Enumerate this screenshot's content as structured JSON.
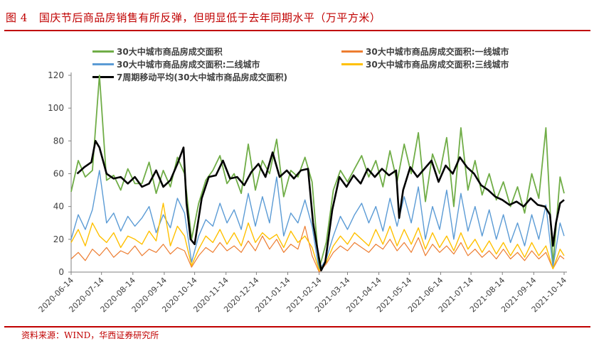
{
  "header": {
    "figure_label": "图 4",
    "title": "国庆节后商品房销售有所反弹，但明显低于去年同期水平（万平方米）"
  },
  "source_text": "资料来源：WIND，华西证券研究所",
  "chart_data": {
    "type": "line",
    "ylim": [
      0,
      120
    ],
    "yticks": [
      0,
      20,
      40,
      60,
      80,
      100,
      120
    ],
    "xlim": [
      "2020-06-14",
      "2021-10-14"
    ],
    "xticks": [
      "2020-06-14",
      "2020-07-14",
      "2020-08-14",
      "2020-09-14",
      "2020-10-14",
      "2020-11-14",
      "2020-12-14",
      "2021-01-14",
      "2021-02-14",
      "2021-03-14",
      "2021-04-14",
      "2021-05-14",
      "2021-06-14",
      "2021-07-14",
      "2021-08-14",
      "2021-09-14",
      "2021-10-14"
    ],
    "grid": false,
    "legend_position": "top",
    "series": [
      {
        "name": "30大中城市商品房成交面积",
        "color": "#70ad47",
        "width": 1.8,
        "x": [
          "2020-06-14",
          "2020-06-21",
          "2020-06-28",
          "2020-07-05",
          "2020-07-12",
          "2020-07-19",
          "2020-07-26",
          "2020-08-02",
          "2020-08-09",
          "2020-08-16",
          "2020-08-23",
          "2020-08-30",
          "2020-09-06",
          "2020-09-13",
          "2020-09-20",
          "2020-09-27",
          "2020-10-04",
          "2020-10-11",
          "2020-10-18",
          "2020-10-25",
          "2020-11-01",
          "2020-11-08",
          "2020-11-15",
          "2020-11-22",
          "2020-11-29",
          "2020-12-06",
          "2020-12-13",
          "2020-12-20",
          "2020-12-27",
          "2021-01-03",
          "2021-01-10",
          "2021-01-17",
          "2021-01-24",
          "2021-01-31",
          "2021-02-07",
          "2021-02-14",
          "2021-02-21",
          "2021-02-28",
          "2021-03-07",
          "2021-03-14",
          "2021-03-21",
          "2021-03-28",
          "2021-04-04",
          "2021-04-11",
          "2021-04-18",
          "2021-04-25",
          "2021-05-02",
          "2021-05-09",
          "2021-05-16",
          "2021-05-23",
          "2021-05-30",
          "2021-06-06",
          "2021-06-13",
          "2021-06-20",
          "2021-06-27",
          "2021-07-04",
          "2021-07-11",
          "2021-07-18",
          "2021-07-25",
          "2021-08-01",
          "2021-08-08",
          "2021-08-15",
          "2021-08-22",
          "2021-08-29",
          "2021-09-05",
          "2021-09-12",
          "2021-09-19",
          "2021-09-26",
          "2021-10-03",
          "2021-10-10",
          "2021-10-14"
        ],
        "values": [
          49,
          68,
          58,
          62,
          120,
          56,
          59,
          50,
          63,
          54,
          54,
          67,
          48,
          62,
          52,
          70,
          60,
          20,
          42,
          56,
          62,
          71,
          54,
          60,
          48,
          78,
          50,
          68,
          60,
          81,
          46,
          62,
          58,
          70,
          55,
          2,
          18,
          50,
          62,
          55,
          63,
          71,
          58,
          68,
          52,
          74,
          55,
          78,
          60,
          85,
          43,
          72,
          60,
          82,
          40,
          88,
          50,
          68,
          47,
          60,
          44,
          55,
          40,
          52,
          36,
          60,
          45,
          88,
          4,
          58,
          48
        ]
      },
      {
        "name": "30大中城市商品房成交面积:一线城市",
        "color": "#ed7d31",
        "width": 1.2,
        "x": [
          "2020-06-14",
          "2020-06-21",
          "2020-06-28",
          "2020-07-05",
          "2020-07-12",
          "2020-07-19",
          "2020-07-26",
          "2020-08-02",
          "2020-08-09",
          "2020-08-16",
          "2020-08-23",
          "2020-08-30",
          "2020-09-06",
          "2020-09-13",
          "2020-09-20",
          "2020-09-27",
          "2020-10-04",
          "2020-10-11",
          "2020-10-18",
          "2020-10-25",
          "2020-11-01",
          "2020-11-08",
          "2020-11-15",
          "2020-11-22",
          "2020-11-29",
          "2020-12-06",
          "2020-12-13",
          "2020-12-20",
          "2020-12-27",
          "2021-01-03",
          "2021-01-10",
          "2021-01-17",
          "2021-01-24",
          "2021-01-31",
          "2021-02-07",
          "2021-02-14",
          "2021-02-21",
          "2021-02-28",
          "2021-03-07",
          "2021-03-14",
          "2021-03-21",
          "2021-03-28",
          "2021-04-04",
          "2021-04-11",
          "2021-04-18",
          "2021-04-25",
          "2021-05-02",
          "2021-05-09",
          "2021-05-16",
          "2021-05-23",
          "2021-05-30",
          "2021-06-06",
          "2021-06-13",
          "2021-06-20",
          "2021-06-27",
          "2021-07-04",
          "2021-07-11",
          "2021-07-18",
          "2021-07-25",
          "2021-08-01",
          "2021-08-08",
          "2021-08-15",
          "2021-08-22",
          "2021-08-29",
          "2021-09-05",
          "2021-09-12",
          "2021-09-19",
          "2021-09-26",
          "2021-10-03",
          "2021-10-10",
          "2021-10-14"
        ],
        "values": [
          8,
          12,
          7,
          14,
          10,
          15,
          9,
          13,
          11,
          16,
          10,
          14,
          12,
          17,
          11,
          15,
          13,
          3,
          10,
          15,
          12,
          18,
          13,
          16,
          12,
          19,
          13,
          22,
          14,
          20,
          12,
          17,
          14,
          28,
          10,
          0,
          5,
          12,
          16,
          13,
          18,
          15,
          12,
          17,
          14,
          20,
          13,
          18,
          12,
          21,
          10,
          17,
          12,
          16,
          11,
          18,
          10,
          14,
          9,
          13,
          8,
          14,
          8,
          12,
          7,
          13,
          8,
          12,
          2,
          10,
          8
        ]
      },
      {
        "name": "30大中城市商品房成交面积:二线城市",
        "color": "#5b9bd5",
        "width": 1.4,
        "x": [
          "2020-06-14",
          "2020-06-21",
          "2020-06-28",
          "2020-07-05",
          "2020-07-12",
          "2020-07-19",
          "2020-07-26",
          "2020-08-02",
          "2020-08-09",
          "2020-08-16",
          "2020-08-23",
          "2020-08-30",
          "2020-09-06",
          "2020-09-13",
          "2020-09-20",
          "2020-09-27",
          "2020-10-04",
          "2020-10-11",
          "2020-10-18",
          "2020-10-25",
          "2020-11-01",
          "2020-11-08",
          "2020-11-15",
          "2020-11-22",
          "2020-11-29",
          "2020-12-06",
          "2020-12-13",
          "2020-12-20",
          "2020-12-27",
          "2021-01-03",
          "2021-01-10",
          "2021-01-17",
          "2021-01-24",
          "2021-01-31",
          "2021-02-07",
          "2021-02-14",
          "2021-02-21",
          "2021-02-28",
          "2021-03-07",
          "2021-03-14",
          "2021-03-21",
          "2021-03-28",
          "2021-04-04",
          "2021-04-11",
          "2021-04-18",
          "2021-04-25",
          "2021-05-02",
          "2021-05-09",
          "2021-05-16",
          "2021-05-23",
          "2021-05-30",
          "2021-06-06",
          "2021-06-13",
          "2021-06-20",
          "2021-06-27",
          "2021-07-04",
          "2021-07-11",
          "2021-07-18",
          "2021-07-25",
          "2021-08-01",
          "2021-08-08",
          "2021-08-15",
          "2021-08-22",
          "2021-08-29",
          "2021-09-05",
          "2021-09-12",
          "2021-09-19",
          "2021-09-26",
          "2021-10-03",
          "2021-10-10",
          "2021-10-14"
        ],
        "values": [
          20,
          35,
          26,
          38,
          62,
          30,
          36,
          25,
          34,
          28,
          33,
          40,
          24,
          35,
          27,
          45,
          36,
          6,
          22,
          32,
          28,
          42,
          30,
          38,
          26,
          48,
          28,
          46,
          30,
          58,
          22,
          36,
          30,
          44,
          28,
          1,
          8,
          22,
          34,
          26,
          35,
          42,
          30,
          40,
          25,
          45,
          28,
          46,
          30,
          52,
          20,
          40,
          26,
          50,
          20,
          48,
          25,
          40,
          22,
          38,
          20,
          35,
          18,
          30,
          16,
          35,
          20,
          41,
          3,
          30,
          22
        ]
      },
      {
        "name": "30大中城市商品房成交面积:三线城市",
        "color": "#ffc000",
        "width": 1.4,
        "x": [
          "2020-06-14",
          "2020-06-21",
          "2020-06-28",
          "2020-07-05",
          "2020-07-12",
          "2020-07-19",
          "2020-07-26",
          "2020-08-02",
          "2020-08-09",
          "2020-08-16",
          "2020-08-23",
          "2020-08-30",
          "2020-09-06",
          "2020-09-13",
          "2020-09-20",
          "2020-09-27",
          "2020-10-04",
          "2020-10-11",
          "2020-10-18",
          "2020-10-25",
          "2020-11-01",
          "2020-11-08",
          "2020-11-15",
          "2020-11-22",
          "2020-11-29",
          "2020-12-06",
          "2020-12-13",
          "2020-12-20",
          "2020-12-27",
          "2021-01-03",
          "2021-01-10",
          "2021-01-17",
          "2021-01-24",
          "2021-01-31",
          "2021-02-07",
          "2021-02-14",
          "2021-02-21",
          "2021-02-28",
          "2021-03-07",
          "2021-03-14",
          "2021-03-21",
          "2021-03-28",
          "2021-04-04",
          "2021-04-11",
          "2021-04-18",
          "2021-04-25",
          "2021-05-02",
          "2021-05-09",
          "2021-05-16",
          "2021-05-23",
          "2021-05-30",
          "2021-06-06",
          "2021-06-13",
          "2021-06-20",
          "2021-06-27",
          "2021-07-04",
          "2021-07-11",
          "2021-07-18",
          "2021-07-25",
          "2021-08-01",
          "2021-08-08",
          "2021-08-15",
          "2021-08-22",
          "2021-08-29",
          "2021-09-05",
          "2021-09-12",
          "2021-09-19",
          "2021-09-26",
          "2021-10-03",
          "2021-10-10",
          "2021-10-14"
        ],
        "values": [
          18,
          26,
          16,
          30,
          22,
          18,
          24,
          15,
          22,
          20,
          17,
          25,
          19,
          42,
          16,
          28,
          22,
          4,
          14,
          22,
          18,
          26,
          17,
          24,
          16,
          30,
          18,
          24,
          20,
          23,
          15,
          25,
          18,
          22,
          15,
          1,
          6,
          16,
          22,
          17,
          24,
          20,
          16,
          26,
          17,
          28,
          16,
          26,
          17,
          27,
          14,
          24,
          15,
          22,
          13,
          24,
          14,
          20,
          12,
          19,
          11,
          18,
          10,
          17,
          9,
          18,
          10,
          16,
          2,
          14,
          10
        ]
      },
      {
        "name": "7周期移动平均(30大中城市商品房成交面积)",
        "color": "#000000",
        "width": 2.6,
        "x": [
          "2020-06-20",
          "2020-06-27",
          "2020-07-04",
          "2020-07-08",
          "2020-07-12",
          "2020-07-19",
          "2020-07-26",
          "2020-08-02",
          "2020-08-09",
          "2020-08-16",
          "2020-08-23",
          "2020-08-30",
          "2020-09-06",
          "2020-09-13",
          "2020-09-20",
          "2020-09-27",
          "2020-10-03",
          "2020-10-06",
          "2020-10-10",
          "2020-10-14",
          "2020-10-21",
          "2020-10-28",
          "2020-11-04",
          "2020-11-11",
          "2020-11-18",
          "2020-11-25",
          "2020-12-02",
          "2020-12-09",
          "2020-12-16",
          "2020-12-23",
          "2020-12-30",
          "2021-01-06",
          "2021-01-13",
          "2021-01-20",
          "2021-01-27",
          "2021-02-03",
          "2021-02-08",
          "2021-02-12",
          "2021-02-16",
          "2021-02-20",
          "2021-02-27",
          "2021-03-06",
          "2021-03-13",
          "2021-03-20",
          "2021-03-27",
          "2021-04-03",
          "2021-04-10",
          "2021-04-17",
          "2021-04-24",
          "2021-05-01",
          "2021-05-04",
          "2021-05-08",
          "2021-05-15",
          "2021-05-22",
          "2021-05-29",
          "2021-06-05",
          "2021-06-12",
          "2021-06-19",
          "2021-06-26",
          "2021-07-03",
          "2021-07-10",
          "2021-07-17",
          "2021-07-24",
          "2021-07-31",
          "2021-08-07",
          "2021-08-14",
          "2021-08-21",
          "2021-08-28",
          "2021-09-04",
          "2021-09-11",
          "2021-09-18",
          "2021-09-25",
          "2021-09-30",
          "2021-10-03",
          "2021-10-06",
          "2021-10-10",
          "2021-10-14"
        ],
        "values": [
          60,
          64,
          67,
          80,
          76,
          60,
          57,
          58,
          54,
          58,
          52,
          54,
          62,
          52,
          56,
          66,
          76,
          42,
          20,
          17,
          45,
          58,
          59,
          68,
          57,
          58,
          53,
          61,
          66,
          58,
          73,
          58,
          62,
          57,
          62,
          63,
          30,
          15,
          1,
          6,
          38,
          58,
          52,
          59,
          54,
          63,
          58,
          63,
          59,
          62,
          33,
          50,
          64,
          58,
          63,
          68,
          55,
          65,
          60,
          70,
          64,
          60,
          53,
          50,
          46,
          44,
          41,
          43,
          40,
          45,
          41,
          40,
          35,
          16,
          30,
          42,
          44
        ]
      }
    ]
  }
}
